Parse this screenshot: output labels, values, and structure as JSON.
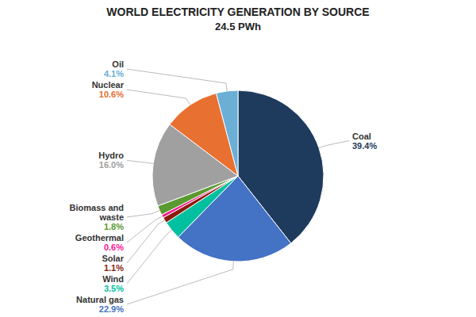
{
  "chart_data": {
    "type": "pie",
    "title": "WORLD ELECTRICITY GENERATION BY SOURCE",
    "subtitle": "24.5 PWh",
    "categories": [
      "Coal",
      "Natural gas",
      "Wind",
      "Solar",
      "Geothermal",
      "Biomass and\nwaste",
      "Hydro",
      "Nuclear",
      "Oil"
    ],
    "values": [
      39.4,
      22.9,
      3.5,
      1.1,
      0.6,
      1.8,
      16.0,
      10.6,
      4.1
    ],
    "value_labels": [
      "39.4%",
      "22.9%",
      "3.5%",
      "1.1%",
      "0.6%",
      "1.8%",
      "16.0%",
      "10.6%",
      "4.1%"
    ],
    "colors": [
      "#1e3a5c",
      "#4472c4",
      "#00c0a0",
      "#8b1c0c",
      "#ff1493",
      "#5a9a30",
      "#a0a0a0",
      "#e87030",
      "#6baed6"
    ],
    "data_labels": true
  }
}
